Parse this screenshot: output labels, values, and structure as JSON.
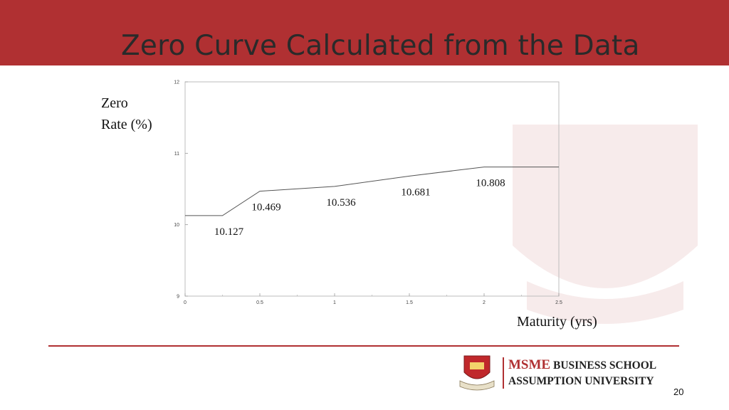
{
  "slide": {
    "title": "Zero Curve Calculated from the Data",
    "page_number": "20"
  },
  "logo": {
    "line1_brand": "MSME",
    "line1_rest": " BUSINESS SCHOOL",
    "line2": "ASSUMPTION UNIVERSITY"
  },
  "colors": {
    "header": "#b03032",
    "accent": "#b03032",
    "curve": "#555555"
  },
  "chart_data": {
    "type": "line",
    "ylabel": "Zero\nRate (%)",
    "ylabel_lines": [
      "Zero",
      "Rate (%)"
    ],
    "xlabel": "Maturity (yrs)",
    "xlim": [
      0,
      2.5
    ],
    "ylim": [
      9,
      12
    ],
    "x_ticks": [
      "0",
      "0.5",
      "1",
      "1.5",
      "2",
      "2.5"
    ],
    "x_tick_values": [
      0,
      0.5,
      1,
      1.5,
      2,
      2.5
    ],
    "y_ticks": [
      "9",
      "10",
      "11",
      "12"
    ],
    "y_tick_values": [
      9,
      10,
      11,
      12
    ],
    "grid": false,
    "series": [
      {
        "x": [
          0,
          0.25,
          0.5,
          1.0,
          1.5,
          2.0,
          2.5
        ],
        "y": [
          10.127,
          10.127,
          10.469,
          10.536,
          10.681,
          10.808,
          10.808
        ]
      }
    ],
    "annotations": [
      {
        "text": "10.127",
        "x": 0.25,
        "y": 10.127
      },
      {
        "text": "10.469",
        "x": 0.5,
        "y": 10.469
      },
      {
        "text": "10.536",
        "x": 1.0,
        "y": 10.536
      },
      {
        "text": "10.681",
        "x": 1.5,
        "y": 10.681
      },
      {
        "text": "10.808",
        "x": 2.0,
        "y": 10.808
      }
    ]
  }
}
